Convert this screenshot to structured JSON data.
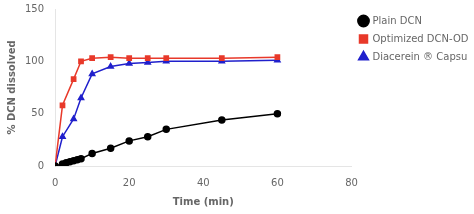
{
  "chart_data": {
    "type": "line",
    "xlabel": "Time (min)",
    "ylabel": "% DCN dissolved",
    "xlim": [
      0,
      80
    ],
    "xticks": [
      0,
      20,
      40,
      60,
      80
    ],
    "ylim": [
      0,
      150
    ],
    "yticks": [
      0,
      50,
      100,
      150
    ],
    "grid": false,
    "legend": "right",
    "series": [
      {
        "name": "Plain DCN",
        "color": "#000000",
        "marker": "circle",
        "x": [
          0,
          2,
          3,
          4,
          5,
          6,
          7,
          10,
          15,
          20,
          25,
          30,
          45,
          60
        ],
        "values": [
          0,
          2,
          3,
          4,
          5,
          6,
          7,
          12,
          17,
          24,
          28,
          35,
          44,
          50
        ]
      },
      {
        "name": "Optimized DCN-ODT",
        "color": "#e8392a",
        "marker": "square",
        "x": [
          0,
          2,
          5,
          7,
          10,
          15,
          20,
          25,
          30,
          45,
          60
        ],
        "values": [
          0,
          58,
          83,
          100,
          103,
          104,
          103,
          103,
          103,
          103,
          104
        ]
      },
      {
        "name": "Diacerein ® Capsules",
        "color": "#2020cc",
        "marker": "triangle",
        "x": [
          0,
          2,
          5,
          7,
          10,
          15,
          20,
          25,
          30,
          45,
          60
        ],
        "values": [
          0,
          28,
          45,
          65,
          88,
          95,
          98,
          99,
          100,
          100,
          101
        ]
      }
    ]
  }
}
